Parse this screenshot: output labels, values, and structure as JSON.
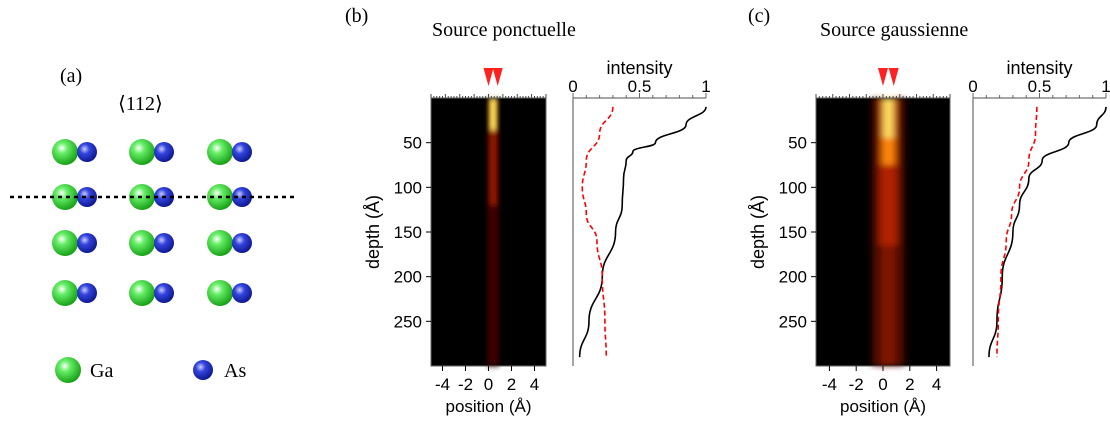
{
  "panel_a": {
    "label": "(a)",
    "direction": "⟨112⟩",
    "legend": [
      {
        "name": "Ga",
        "color": "#33cc33"
      },
      {
        "name": "As",
        "color": "#2233cc"
      }
    ]
  },
  "colors": {
    "ga": "#33cc33",
    "as": "#2233cc",
    "arrow": "#ff2020",
    "solid": "#000000",
    "dashed": "#ff0000"
  },
  "chart_data": [
    {
      "type": "heatmap",
      "panel_label": "(b)",
      "title": "Source ponctuelle",
      "xlabel": "position (Å)",
      "ylabel": "depth (Å)",
      "x_ticks": [
        "-4",
        "-2",
        "0",
        "2",
        "4"
      ],
      "y_ticks": [
        "50",
        "100",
        "150",
        "200",
        "250"
      ],
      "xlim": [
        -5,
        5
      ],
      "ylim": [
        0,
        300
      ],
      "beam_peaks_x": [
        0,
        0.8
      ],
      "colormap": "hot"
    },
    {
      "type": "line",
      "title": "",
      "xlabel": "intensity",
      "x_ticks": [
        "0",
        "0.5",
        "1"
      ],
      "xlim": [
        0,
        1
      ],
      "ylim": [
        0,
        300
      ],
      "series": [
        {
          "style": "solid",
          "depth": [
            10,
            30,
            50,
            60,
            70,
            90,
            120,
            150,
            200,
            250,
            290
          ],
          "intensity": [
            1.0,
            0.85,
            0.62,
            0.45,
            0.4,
            0.38,
            0.37,
            0.32,
            0.22,
            0.12,
            0.05
          ]
        },
        {
          "style": "dashed",
          "depth": [
            10,
            40,
            70,
            100,
            130,
            160,
            200,
            250,
            290
          ],
          "intensity": [
            0.3,
            0.2,
            0.1,
            0.07,
            0.1,
            0.18,
            0.22,
            0.24,
            0.25
          ]
        }
      ]
    },
    {
      "type": "heatmap",
      "panel_label": "(c)",
      "title": "Source gaussienne",
      "xlabel": "position (Å)",
      "ylabel": "depth (Å)",
      "x_ticks": [
        "-4",
        "-2",
        "0",
        "2",
        "4"
      ],
      "y_ticks": [
        "50",
        "100",
        "150",
        "200",
        "250"
      ],
      "xlim": [
        -5,
        5
      ],
      "ylim": [
        0,
        300
      ],
      "beam_peaks_x": [
        0,
        0.8
      ],
      "colormap": "hot"
    },
    {
      "type": "line",
      "title": "",
      "xlabel": "intensity",
      "x_ticks": [
        "0",
        "0.5",
        "1"
      ],
      "xlim": [
        0,
        1
      ],
      "ylim": [
        0,
        300
      ],
      "series": [
        {
          "style": "solid",
          "depth": [
            10,
            30,
            50,
            70,
            90,
            120,
            150,
            200,
            250,
            290
          ],
          "intensity": [
            1.0,
            0.93,
            0.72,
            0.52,
            0.42,
            0.35,
            0.3,
            0.22,
            0.18,
            0.12
          ]
        },
        {
          "style": "dashed",
          "depth": [
            10,
            40,
            70,
            100,
            130,
            160,
            200,
            250,
            290
          ],
          "intensity": [
            0.48,
            0.47,
            0.42,
            0.35,
            0.29,
            0.25,
            0.21,
            0.19,
            0.18
          ]
        }
      ]
    }
  ]
}
